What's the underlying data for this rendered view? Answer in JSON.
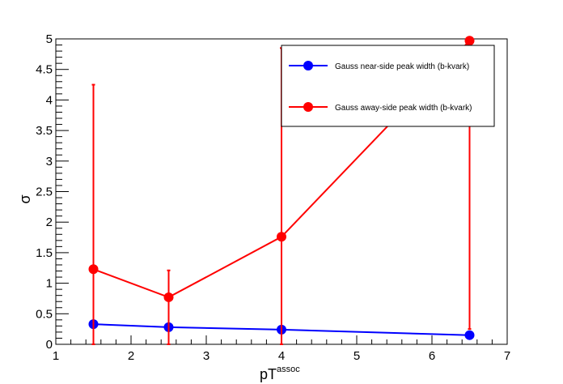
{
  "chart_data": {
    "type": "scatter",
    "xlabel": "pT",
    "xlabel_sup": "assoc",
    "ylabel": "σ",
    "xlim": [
      1,
      7
    ],
    "ylim": [
      0,
      5
    ],
    "x_ticks": [
      "1",
      "2",
      "3",
      "4",
      "5",
      "6",
      "7"
    ],
    "y_ticks": [
      "0",
      "0.5",
      "1",
      "1.5",
      "2",
      "2.5",
      "3",
      "3.5",
      "4",
      "4.5",
      "5"
    ],
    "legend_position": "top-right",
    "grid": false,
    "series": [
      {
        "name": "Gauss near-side peak width (b-kvark)",
        "color": "#0000ff",
        "x": [
          1.5,
          2.5,
          4.0,
          6.5
        ],
        "y": [
          0.33,
          0.28,
          0.24,
          0.15
        ],
        "err_low": [
          0.0,
          0.0,
          0.0,
          0.0
        ],
        "err_high": [
          0.0,
          0.0,
          0.0,
          0.0
        ]
      },
      {
        "name": "Gauss away-side peak width (b-kvark)",
        "color": "#ff0000",
        "x": [
          1.5,
          2.5,
          4.0,
          6.5
        ],
        "y": [
          1.23,
          0.77,
          1.76,
          4.97
        ],
        "err_low": [
          1.23,
          0.77,
          1.76,
          4.72
        ],
        "err_high": [
          3.02,
          0.44,
          3.09,
          0.03
        ]
      }
    ]
  }
}
